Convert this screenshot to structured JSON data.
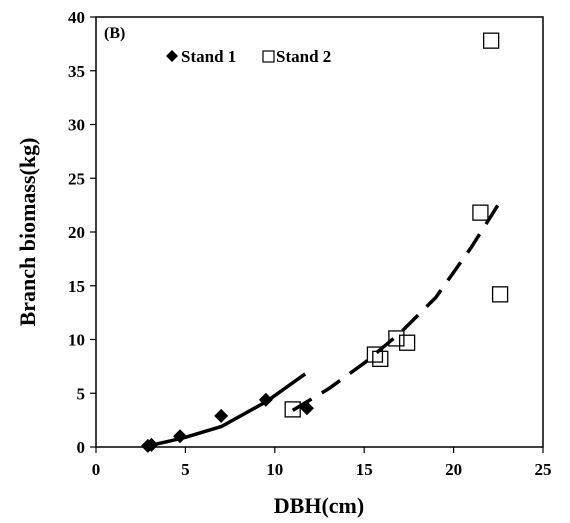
{
  "chart_data": {
    "type": "scatter",
    "panel_label": "(B)",
    "xlabel": "DBH(cm)",
    "ylabel": "Branch biomass(kg)",
    "xlim": [
      0,
      25
    ],
    "ylim": [
      0,
      40
    ],
    "xticks": [
      "0",
      "5",
      "10",
      "15",
      "20",
      "25"
    ],
    "yticks": [
      "0",
      "5",
      "10",
      "15",
      "20",
      "25",
      "30",
      "35",
      "40"
    ],
    "grid": false,
    "legend_position": "top-left",
    "series": [
      {
        "name": "Stand 1",
        "marker": "diamond",
        "color": "#000000",
        "points": [
          {
            "x": 2.9,
            "y": 0.1
          },
          {
            "x": 3.1,
            "y": 0.2
          },
          {
            "x": 4.7,
            "y": 1.0
          },
          {
            "x": 7.0,
            "y": 2.9
          },
          {
            "x": 9.5,
            "y": 4.4
          },
          {
            "x": 11.8,
            "y": 3.6
          }
        ]
      },
      {
        "name": "Stand 2",
        "marker": "open-square",
        "color": "#000000",
        "points": [
          {
            "x": 11.0,
            "y": 3.5
          },
          {
            "x": 15.6,
            "y": 8.6
          },
          {
            "x": 15.9,
            "y": 8.2
          },
          {
            "x": 16.8,
            "y": 10.1
          },
          {
            "x": 17.4,
            "y": 9.7
          },
          {
            "x": 21.5,
            "y": 21.8
          },
          {
            "x": 22.1,
            "y": 37.8
          },
          {
            "x": 22.6,
            "y": 14.2
          }
        ]
      }
    ],
    "fit_lines": [
      {
        "series": "Stand 1",
        "style": "solid",
        "points": [
          {
            "x": 2.9,
            "y": 0.1
          },
          {
            "x": 4.0,
            "y": 0.5
          },
          {
            "x": 5.0,
            "y": 0.9
          },
          {
            "x": 7.0,
            "y": 1.9
          },
          {
            "x": 9.5,
            "y": 4.2
          },
          {
            "x": 11.7,
            "y": 6.8
          }
        ]
      },
      {
        "series": "Stand 2",
        "style": "dashed",
        "points": [
          {
            "x": 11.0,
            "y": 3.4
          },
          {
            "x": 13.0,
            "y": 5.4
          },
          {
            "x": 15.0,
            "y": 7.8
          },
          {
            "x": 17.0,
            "y": 10.6
          },
          {
            "x": 19.0,
            "y": 13.9
          },
          {
            "x": 21.0,
            "y": 18.6
          },
          {
            "x": 22.7,
            "y": 23.1
          }
        ]
      }
    ]
  }
}
